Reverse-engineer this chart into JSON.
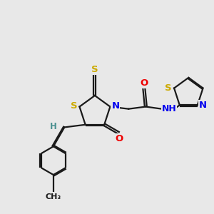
{
  "background_color": "#e8e8e8",
  "bond_color": "#1a1a1a",
  "atom_colors": {
    "S": "#ccaa00",
    "N": "#0000ee",
    "O": "#ee0000",
    "H": "#4a9090",
    "C": "#1a1a1a"
  },
  "figsize": [
    3.0,
    3.0
  ],
  "dpi": 100,
  "lw": 1.6,
  "dbl_off": 0.022,
  "fs": 9.5
}
